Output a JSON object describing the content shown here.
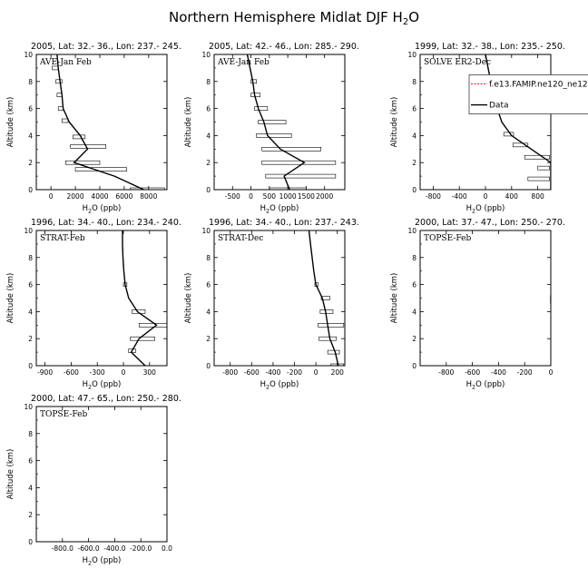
{
  "title": {
    "main": "Northern Hemisphere Midlat DJF H",
    "sub": "2",
    "end": "O"
  },
  "x_label": {
    "pre": "H",
    "sub": "2",
    "post": "O (ppb)"
  },
  "y_label": "Altitude (km)",
  "legend": {
    "model": "f.e13.FAMIP.ne120_ne12",
    "data": "Data",
    "model_color": "#ff0000",
    "data_color": "#000000"
  },
  "chart_data": [
    {
      "type": "line",
      "header": "2005, Lat: 32.- 36., Lon: 237.- 245.",
      "label": "AVE-Jan Feb",
      "xlim": [
        -1200,
        9500
      ],
      "ylim": [
        0,
        10
      ],
      "xticks": [
        {
          "v": 0,
          "t": "0"
        },
        {
          "v": 2000,
          "t": "2000"
        },
        {
          "v": 4000,
          "t": "4000"
        },
        {
          "v": 6000,
          "t": "6000"
        },
        {
          "v": 8000,
          "t": "8000"
        }
      ],
      "series": [
        {
          "x": [
            7600,
            5200,
            1900,
            3000,
            2400,
            1500,
            1000,
            900,
            750,
            600,
            500
          ],
          "y": [
            0,
            1,
            2,
            3,
            4,
            5,
            6,
            7,
            8,
            9,
            10
          ]
        }
      ],
      "boxes": [
        {
          "y": 0,
          "lo": 6500,
          "hi": 9300
        },
        {
          "y": 1.5,
          "lo": 2000,
          "hi": 6200
        },
        {
          "y": 2.0,
          "lo": 1200,
          "hi": 4000
        },
        {
          "y": 3.2,
          "lo": 1600,
          "hi": 4500
        },
        {
          "y": 3.9,
          "lo": 1800,
          "hi": 2800
        },
        {
          "y": 5.1,
          "lo": 900,
          "hi": 1400
        },
        {
          "y": 6.0,
          "lo": 600,
          "hi": 1000
        },
        {
          "y": 7.0,
          "lo": 500,
          "hi": 900
        },
        {
          "y": 8.0,
          "lo": 400,
          "hi": 900
        },
        {
          "y": 9.0,
          "lo": 100,
          "hi": 600
        }
      ]
    },
    {
      "type": "line",
      "header": "2005, Lat: 42.- 46., Lon: 285.- 290.",
      "label": "AVE-Jan Feb",
      "xlim": [
        -1000,
        2550
      ],
      "ylim": [
        0,
        10
      ],
      "xticks": [
        {
          "v": -500,
          "t": "-500"
        },
        {
          "v": 0,
          "t": "0"
        },
        {
          "v": 500,
          "t": "500"
        },
        {
          "v": 1000,
          "t": "1000"
        },
        {
          "v": 1500,
          "t": "1500"
        },
        {
          "v": 2000,
          "t": "2000"
        }
      ],
      "series": [
        {
          "x": [
            1050,
            900,
            1450,
            800,
            450,
            350,
            200,
            100,
            50,
            -100
          ],
          "y": [
            0,
            1,
            2,
            3,
            4,
            5,
            6,
            7,
            8,
            10
          ]
        }
      ],
      "boxes": [
        {
          "y": 0,
          "lo": 500,
          "hi": 1500
        },
        {
          "y": 1,
          "lo": 400,
          "hi": 2300
        },
        {
          "y": 2,
          "lo": 300,
          "hi": 2300
        },
        {
          "y": 3,
          "lo": 300,
          "hi": 1900
        },
        {
          "y": 4,
          "lo": 150,
          "hi": 1100
        },
        {
          "y": 5,
          "lo": 200,
          "hi": 950
        },
        {
          "y": 6,
          "lo": 100,
          "hi": 450
        },
        {
          "y": 7,
          "lo": 0,
          "hi": 250
        },
        {
          "y": 8,
          "lo": 0,
          "hi": 150
        }
      ]
    },
    {
      "type": "line",
      "header": "1999, Lat: 32.- 38., Lon: 235.- 250.",
      "label": "SOLVE ER2-Dec",
      "xlim": [
        -1000,
        1000
      ],
      "ylim": [
        0,
        10
      ],
      "xticks": [
        {
          "v": -800,
          "t": "-800"
        },
        {
          "v": -400,
          "t": "-400"
        },
        {
          "v": 0,
          "t": "0"
        },
        {
          "v": 400,
          "t": "400"
        },
        {
          "v": 800,
          "t": "800"
        }
      ],
      "series": [
        {
          "x": [
            1000,
            1000,
            1000,
            700,
            400,
            250,
            180,
            120,
            80,
            40,
            0
          ],
          "y": [
            0,
            1,
            2,
            3,
            4,
            5,
            6,
            7,
            8,
            9,
            10
          ]
        }
      ],
      "boxes": [
        {
          "y": 0.8,
          "lo": 650,
          "hi": 980
        },
        {
          "y": 1.6,
          "lo": 800,
          "hi": 980
        },
        {
          "y": 2.4,
          "lo": 600,
          "hi": 980
        },
        {
          "y": 3.3,
          "lo": 420,
          "hi": 650
        },
        {
          "y": 4.1,
          "lo": 280,
          "hi": 430
        }
      ],
      "show_legend": true
    },
    {
      "type": "line",
      "header": "1996, Lat: 34.- 40., Lon: 234.- 240.",
      "label": "STRAT-Feb",
      "xlim": [
        -1000,
        500
      ],
      "ylim": [
        0,
        10
      ],
      "xticks": [
        {
          "v": -900,
          "t": "-900"
        },
        {
          "v": -600,
          "t": "-600"
        },
        {
          "v": -300,
          "t": "-300"
        },
        {
          "v": 0,
          "t": "0"
        },
        {
          "v": 300,
          "t": "300"
        }
      ],
      "series": [
        {
          "x": [
            250,
            90,
            180,
            380,
            160,
            60,
            20,
            5,
            -5,
            -10,
            -10
          ],
          "y": [
            0,
            1,
            2,
            3,
            4,
            5,
            6,
            7,
            8,
            9,
            10
          ]
        }
      ],
      "boxes": [
        {
          "y": 1.1,
          "lo": 60,
          "hi": 140
        },
        {
          "y": 2.0,
          "lo": 80,
          "hi": 360
        },
        {
          "y": 3.0,
          "lo": 180,
          "hi": 520
        },
        {
          "y": 4.0,
          "lo": 100,
          "hi": 250
        },
        {
          "y": 6.0,
          "lo": 0,
          "hi": 40
        }
      ]
    },
    {
      "type": "line",
      "header": "1996, Lat: 34.- 40., Lon: 237.- 243.",
      "label": "STRAT-Dec",
      "xlim": [
        -950,
        270
      ],
      "ylim": [
        0,
        10
      ],
      "xticks": [
        {
          "v": -800,
          "t": "-800"
        },
        {
          "v": -600,
          "t": "-600"
        },
        {
          "v": -400,
          "t": "-400"
        },
        {
          "v": -200,
          "t": "-200"
        },
        {
          "v": 0,
          "t": "0"
        },
        {
          "v": 200,
          "t": "200"
        }
      ],
      "series": [
        {
          "x": [
            210,
            180,
            130,
            110,
            90,
            60,
            0,
            -20,
            -35,
            -50,
            -65
          ],
          "y": [
            0,
            1,
            2,
            3,
            4,
            5,
            6,
            7,
            8,
            9,
            10
          ]
        }
      ],
      "boxes": [
        {
          "y": 0,
          "lo": 140,
          "hi": 260
        },
        {
          "y": 1.0,
          "lo": 110,
          "hi": 220
        },
        {
          "y": 2.0,
          "lo": 30,
          "hi": 190
        },
        {
          "y": 3.0,
          "lo": 20,
          "hi": 260
        },
        {
          "y": 4.0,
          "lo": 40,
          "hi": 160
        },
        {
          "y": 5.0,
          "lo": 50,
          "hi": 130
        },
        {
          "y": 6.0,
          "lo": -10,
          "hi": 20
        }
      ]
    },
    {
      "type": "line",
      "header": "2000, Lat: 37.- 47., Lon: 250.- 270.",
      "label": "TOPSE-Feb",
      "xlim": [
        -1000,
        0
      ],
      "ylim": [
        0,
        10
      ],
      "xticks": [
        {
          "v": -800,
          "t": "-800"
        },
        {
          "v": -600,
          "t": "-600"
        },
        {
          "v": -400,
          "t": "-400"
        },
        {
          "v": -200,
          "t": "-200"
        },
        {
          "v": 0,
          "t": "0"
        }
      ],
      "series": [
        {
          "x": [
            0,
            0
          ],
          "y": [
            4.6,
            5.2
          ]
        }
      ],
      "boxes": []
    },
    {
      "type": "line",
      "header": "2000, Lat: 47.- 65., Lon: 250.- 280.",
      "label": "TOPSE-Feb",
      "xlim": [
        -1000,
        0
      ],
      "ylim": [
        0,
        10
      ],
      "xticks": [
        {
          "v": -800,
          "t": "-800.0"
        },
        {
          "v": -600,
          "t": "-600.0"
        },
        {
          "v": -400,
          "t": "-400.0"
        },
        {
          "v": -200,
          "t": "-200.0"
        },
        {
          "v": 0,
          "t": "0.0"
        }
      ],
      "series": [],
      "boxes": []
    }
  ]
}
